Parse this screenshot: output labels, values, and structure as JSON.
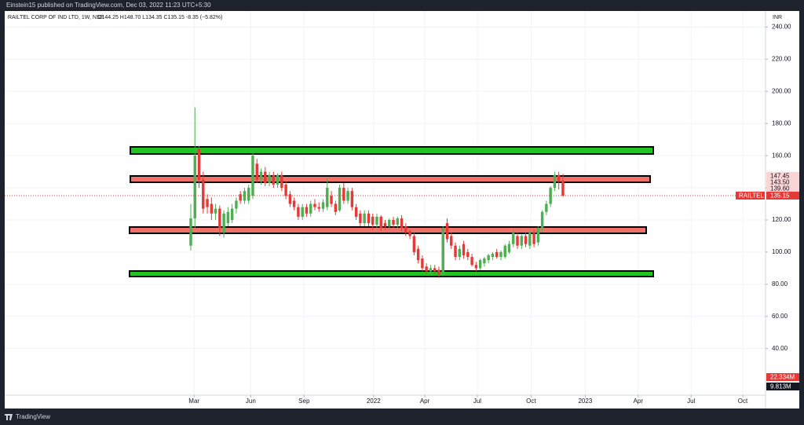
{
  "header": "Einstein15 published on TradingView.com, Dec 03, 2022 11:23 UTC+5:30",
  "footer": "TradingView",
  "chart_data": {
    "type": "candlestick",
    "title": "RAILTEL CORP OF IND LTD, 1W, NSE",
    "info": "O144.25 H148.70 L134.35 C135.15 -8.35 (−5.82%)",
    "y_unit": "INR",
    "up_color": "#4caf50",
    "down_color": "#e53935",
    "grid": true,
    "x": [
      0,
      1,
      2,
      3,
      4,
      5,
      6,
      7,
      8,
      9,
      10,
      11,
      12,
      13,
      14,
      15,
      16,
      17,
      18,
      19,
      20,
      21,
      22,
      23,
      24,
      25,
      26,
      27,
      28,
      29,
      30,
      31,
      32,
      33,
      34,
      35,
      36,
      37,
      38,
      39,
      40,
      41,
      42,
      43,
      44,
      45,
      46,
      47,
      48,
      49,
      50,
      51,
      52,
      53,
      54,
      55,
      56,
      57,
      58,
      59,
      60,
      61,
      62,
      63,
      64,
      65,
      66,
      67,
      68,
      69,
      70,
      71,
      72,
      73,
      74,
      75,
      76,
      77,
      78,
      79,
      80,
      81,
      82,
      83,
      84,
      85,
      86,
      87,
      88,
      89,
      90
    ],
    "open": [
      104,
      121,
      164,
      145,
      133,
      130,
      124,
      127,
      112,
      118,
      120,
      127,
      136,
      132,
      132,
      135,
      155,
      145,
      150,
      143,
      148,
      142,
      148,
      142,
      136,
      132,
      128,
      122,
      128,
      124,
      130,
      128,
      127,
      128,
      135,
      130,
      126,
      140,
      132,
      138,
      128,
      124,
      118,
      124,
      122,
      117,
      122,
      118,
      116,
      120,
      117,
      121,
      116,
      113,
      110,
      102,
      96,
      91,
      88,
      90,
      89,
      86,
      118,
      110,
      104,
      97,
      105,
      100,
      97,
      92,
      90,
      93,
      95,
      97,
      100,
      97,
      97,
      100,
      105,
      110,
      104,
      110,
      104,
      112,
      106,
      115,
      125,
      130,
      140,
      148,
      144.25
    ],
    "high": [
      130,
      190,
      166,
      150,
      136,
      134,
      130,
      129,
      126,
      128,
      130,
      134,
      138,
      140,
      142,
      165,
      158,
      152,
      153,
      150,
      150,
      149,
      150,
      144,
      138,
      134,
      130,
      130,
      130,
      132,
      133,
      131,
      133,
      146,
      138,
      132,
      142,
      143,
      140,
      140,
      130,
      126,
      126,
      126,
      124,
      124,
      123,
      120,
      121,
      122,
      122,
      123,
      118,
      114,
      112,
      104,
      98,
      93,
      92,
      92,
      91,
      116,
      121,
      112,
      106,
      104,
      107,
      102,
      99,
      94,
      96,
      97,
      99,
      100,
      102,
      101,
      105,
      107,
      114,
      112,
      111,
      112,
      113,
      114,
      116,
      126,
      132,
      141,
      150,
      150,
      148.7
    ],
    "low": [
      101,
      115,
      140,
      124,
      124,
      120,
      120,
      110,
      109,
      116,
      118,
      124,
      130,
      130,
      130,
      133,
      143,
      142,
      141,
      141,
      140,
      140,
      138,
      133,
      128,
      126,
      120,
      120,
      122,
      122,
      126,
      125,
      125,
      126,
      128,
      123,
      125,
      130,
      130,
      126,
      120,
      116,
      116,
      116,
      114,
      115,
      113,
      114,
      114,
      115,
      115,
      113,
      110,
      108,
      98,
      93,
      88,
      86,
      86,
      86,
      84,
      85,
      106,
      102,
      95,
      95,
      96,
      95,
      91,
      88,
      89,
      91,
      93,
      95,
      96,
      95,
      96,
      99,
      103,
      102,
      102,
      103,
      102,
      103,
      104,
      113,
      123,
      128,
      138,
      139,
      134.35
    ],
    "close": [
      121,
      160,
      145,
      127,
      128,
      124,
      127,
      115,
      124,
      125,
      127,
      132,
      132,
      138,
      140,
      160,
      145,
      150,
      143,
      148,
      142,
      148,
      140,
      135,
      130,
      128,
      122,
      128,
      124,
      130,
      128,
      127,
      131,
      140,
      130,
      125,
      140,
      132,
      138,
      128,
      122,
      118,
      124,
      118,
      117,
      122,
      115,
      116,
      120,
      117,
      121,
      115,
      112,
      110,
      100,
      95,
      90,
      88,
      90,
      88,
      86,
      115,
      108,
      104,
      97,
      102,
      98,
      97,
      92,
      90,
      95,
      96,
      98,
      99,
      97,
      100,
      104,
      105,
      112,
      104,
      110,
      105,
      112,
      105,
      115,
      125,
      130,
      140,
      148,
      144,
      135.15
    ],
    "xlim": [
      -45,
      139
    ],
    "xticks": [
      {
        "value": 0.8,
        "label": "Mar"
      },
      {
        "value": 14.5,
        "label": "Jun"
      },
      {
        "value": 27.4,
        "label": "Sep"
      },
      {
        "value": 44.2,
        "label": "2022"
      },
      {
        "value": 56.6,
        "label": "Apr"
      },
      {
        "value": 69.3,
        "label": "Jul"
      },
      {
        "value": 82.3,
        "label": "Oct"
      },
      {
        "value": 95.4,
        "label": "2023"
      },
      {
        "value": 108.2,
        "label": "Apr"
      },
      {
        "value": 121,
        "label": "Jul"
      },
      {
        "value": 133.5,
        "label": "Oct"
      }
    ],
    "ylim": [
      11,
      250
    ],
    "yticks": [
      {
        "value": 40,
        "label": "40.00"
      },
      {
        "value": 60,
        "label": "60.00"
      },
      {
        "value": 80,
        "label": "80.00"
      },
      {
        "value": 100,
        "label": "100.00"
      },
      {
        "value": 120,
        "label": "120.00"
      },
      {
        "value": 140,
        "label": "140.00"
      },
      {
        "value": 160,
        "label": "160.00"
      },
      {
        "value": 180,
        "label": "180.00"
      },
      {
        "value": 200,
        "label": "200.00"
      },
      {
        "value": 220,
        "label": "220.00"
      },
      {
        "value": 240,
        "label": "240.00"
      }
    ],
    "last_price_tag": "RAILTEL",
    "price_labels": [
      {
        "value": 147.45,
        "label": "147.45"
      },
      {
        "value": 143.5,
        "label": "143.50"
      },
      {
        "value": 139.6,
        "label": "139.60"
      },
      {
        "value": 135.15,
        "label": "135.15"
      }
    ],
    "volume_labels": [
      "22.334M",
      "9.813M"
    ]
  }
}
